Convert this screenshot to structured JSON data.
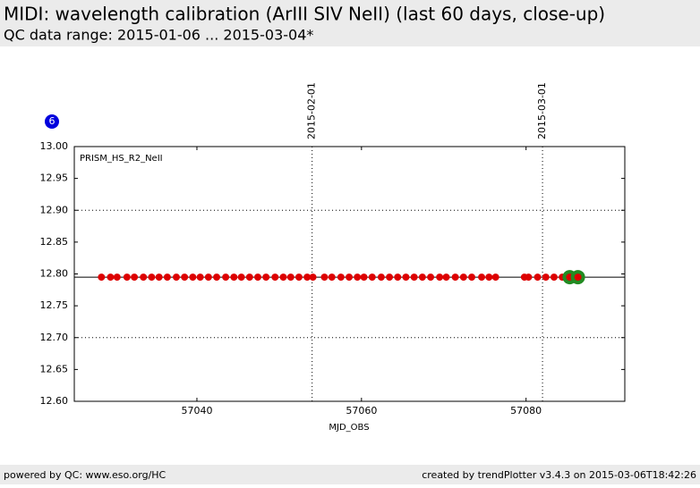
{
  "chart_data": {
    "type": "scatter",
    "title": "MIDI: wavelength calibration (ArIII SIV NeII) (last 60 days, close-up)",
    "subtitle": "QC data range: 2015-01-06 ... 2015-03-04*",
    "badge": "6",
    "panel_label": "PRISM_HS_R2_NeII",
    "xlabel": "MJD_OBS",
    "xlim": [
      57025.1,
      57092
    ],
    "xticks": [
      57040,
      57060,
      57080
    ],
    "ylim": [
      12.6,
      13.0
    ],
    "yticks": [
      {
        "value": 12.6,
        "label": "12.60"
      },
      {
        "value": 12.65,
        "label": "12.65"
      },
      {
        "value": 12.7,
        "label": "12.70"
      },
      {
        "value": 12.75,
        "label": "12.75"
      },
      {
        "value": 12.8,
        "label": "12.80"
      },
      {
        "value": 12.85,
        "label": "12.85"
      },
      {
        "value": 12.9,
        "label": "12.90"
      },
      {
        "value": 12.95,
        "label": "12.95"
      },
      {
        "value": 13.0,
        "label": "13.00"
      }
    ],
    "dotted_levels": [
      12.7,
      12.9
    ],
    "reference_value": 12.795,
    "date_lines": [
      {
        "value": 57054,
        "label": "2015-02-01"
      },
      {
        "value": 57082,
        "label": "2015-03-01"
      }
    ],
    "series": [
      {
        "color": "#dd0000",
        "x": [
          57028.4,
          57029.5,
          57030.3,
          57031.5,
          57032.4,
          57033.5,
          57034.5,
          57035.4,
          57036.4,
          57037.5,
          57038.5,
          57039.5,
          57040.4,
          57041.4,
          57042.4,
          57043.5,
          57044.5,
          57045.4,
          57046.4,
          57047.4,
          57048.4,
          57049.5,
          57050.5,
          57051.4,
          57052.4,
          57053.4,
          57054.1,
          57055.5,
          57056.4,
          57057.5,
          57058.5,
          57059.5,
          57060.3,
          57061.3,
          57062.4,
          57063.4,
          57064.4,
          57065.4,
          57066.4,
          57067.4,
          57068.4,
          57069.5,
          57070.3,
          57071.4,
          57072.4,
          57073.4,
          57074.6,
          57075.5,
          57076.3,
          57079.8,
          57080.3,
          57081.4,
          57082.4,
          57083.4,
          57084.4
        ],
        "values": [
          12.795,
          12.795,
          12.795,
          12.795,
          12.795,
          12.795,
          12.795,
          12.795,
          12.795,
          12.795,
          12.795,
          12.795,
          12.795,
          12.795,
          12.795,
          12.795,
          12.795,
          12.795,
          12.795,
          12.795,
          12.795,
          12.795,
          12.795,
          12.795,
          12.795,
          12.795,
          12.795,
          12.795,
          12.795,
          12.795,
          12.795,
          12.795,
          12.795,
          12.795,
          12.795,
          12.795,
          12.795,
          12.795,
          12.795,
          12.795,
          12.795,
          12.795,
          12.795,
          12.795,
          12.795,
          12.795,
          12.795,
          12.795,
          12.795,
          12.795,
          12.795,
          12.795,
          12.795,
          12.795,
          12.795
        ]
      },
      {
        "color": "#228b22",
        "x": [
          57085.3,
          57086.3
        ],
        "values": [
          12.795,
          12.795
        ]
      }
    ],
    "footer_left": "powered by QC: www.eso.org/HC",
    "footer_right": "created by trendPlotter v3.4.3 on 2015-03-06T18:42:26"
  }
}
